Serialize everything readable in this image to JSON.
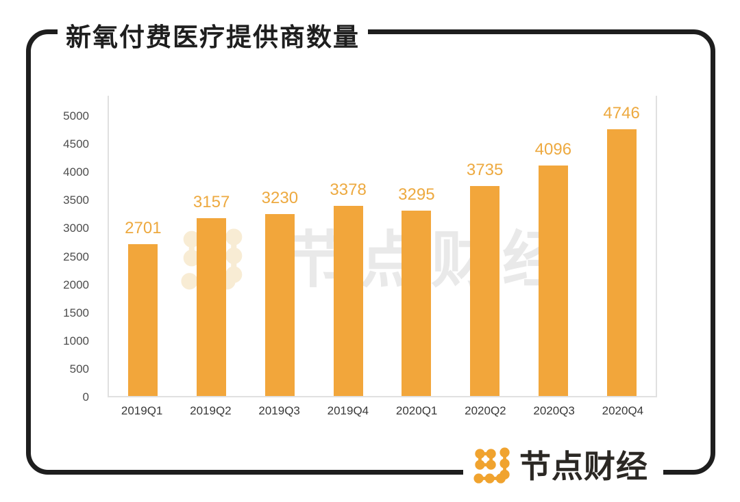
{
  "title": "新氧付费医疗提供商数量",
  "chart_data": {
    "type": "bar",
    "title": "新氧付费医疗提供商数量",
    "categories": [
      "2019Q1",
      "2019Q2",
      "2019Q3",
      "2019Q4",
      "2020Q1",
      "2020Q2",
      "2020Q3",
      "2020Q4"
    ],
    "values": [
      2701,
      3157,
      3230,
      3378,
      3295,
      3735,
      4096,
      4746
    ],
    "xlabel": "",
    "ylabel": "",
    "ylim": [
      0,
      5000
    ],
    "yticks": [
      0,
      500,
      1000,
      1500,
      2000,
      2500,
      3000,
      3500,
      4000,
      4500,
      5000
    ],
    "grid": false,
    "legend": false,
    "bar_color": "#F2A63B",
    "value_label_color": "#EDA93F"
  },
  "watermark": {
    "text": "节点财经"
  },
  "logo": {
    "text": "节点财经"
  },
  "colors": {
    "frame_ink": "#1E1E1E",
    "logo_orange": "#F0A32F",
    "watermark_text": "#E9E9E9",
    "watermark_icon": "#F8ECD4",
    "axis_line": "#E0E0E0",
    "y_tick_text": "#4D4D4D",
    "x_tick_text": "#383838"
  }
}
